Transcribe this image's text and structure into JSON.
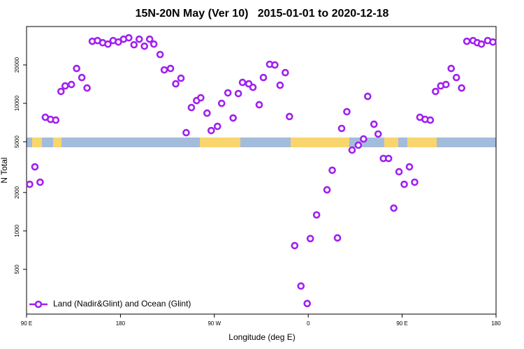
{
  "chart_data": {
    "type": "scatter",
    "title": "15N-20N May (Ver 10)   2015-01-01 to 2020-12-18",
    "x_label": "Longitude (deg E)",
    "y_label": "N Total",
    "log_y": true,
    "legend": "bottom left",
    "xlim": [
      90,
      540
    ],
    "xticks": [
      {
        "value": 90,
        "label": "90 E"
      },
      180,
      {
        "value": 270,
        "label": "90 W"
      },
      {
        "value": 360,
        "label": "0"
      },
      {
        "value": 450,
        "label": "90 E"
      },
      {
        "value": 540,
        "label": "180"
      }
    ],
    "ylim": [
      223,
      40000
    ],
    "yticks": [
      500,
      1000,
      2000,
      5000,
      10000,
      20000
    ],
    "x": [
      93,
      98,
      103,
      108,
      113,
      118,
      123,
      127,
      133,
      138,
      143,
      148,
      153,
      158,
      163,
      168,
      173,
      178,
      183,
      188,
      193,
      198,
      203,
      208,
      212,
      218,
      222,
      228,
      233,
      238,
      243,
      248,
      253,
      257,
      263,
      267,
      273,
      277,
      283,
      288,
      293,
      297,
      303,
      307,
      313,
      317,
      323,
      328,
      333,
      338,
      342,
      347,
      353,
      359,
      362,
      368,
      378,
      383,
      388,
      392,
      397,
      402,
      408,
      413,
      417,
      423,
      427,
      432,
      437,
      442,
      447,
      452,
      457,
      462,
      467,
      472,
      477,
      482,
      487,
      492,
      497,
      502,
      507,
      512,
      518,
      522,
      526,
      532,
      537
    ],
    "series": [
      {
        "name": "Land (Nadir&Glint) and Ocean (Glint)",
        "color": "#a020f0",
        "values": [
          2320,
          3180,
          2410,
          7780,
          7490,
          7390,
          12390,
          13700,
          14050,
          18760,
          15930,
          13190,
          30650,
          31040,
          29870,
          29130,
          31040,
          30250,
          31830,
          32640,
          28780,
          31830,
          28050,
          31830,
          29130,
          24130,
          18290,
          18760,
          14220,
          15730,
          5890,
          9270,
          10510,
          11060,
          8380,
          6120,
          6600,
          10000,
          12080,
          7680,
          11930,
          14590,
          14220,
          13350,
          9750,
          15930,
          20230,
          19990,
          13870,
          17400,
          7880,
          767,
          370,
          270,
          871,
          1336,
          2100,
          2990,
          882,
          6360,
          8600,
          4300,
          4700,
          5260,
          11340,
          6860,
          5750,
          3700,
          3700,
          1510,
          2910,
          2320,
          3180,
          2410,
          7780,
          7490,
          7390,
          12390,
          13700,
          14050,
          18760,
          15930,
          13190,
          30650,
          31040,
          29870,
          29130,
          31040,
          30250
        ]
      }
    ]
  }
}
